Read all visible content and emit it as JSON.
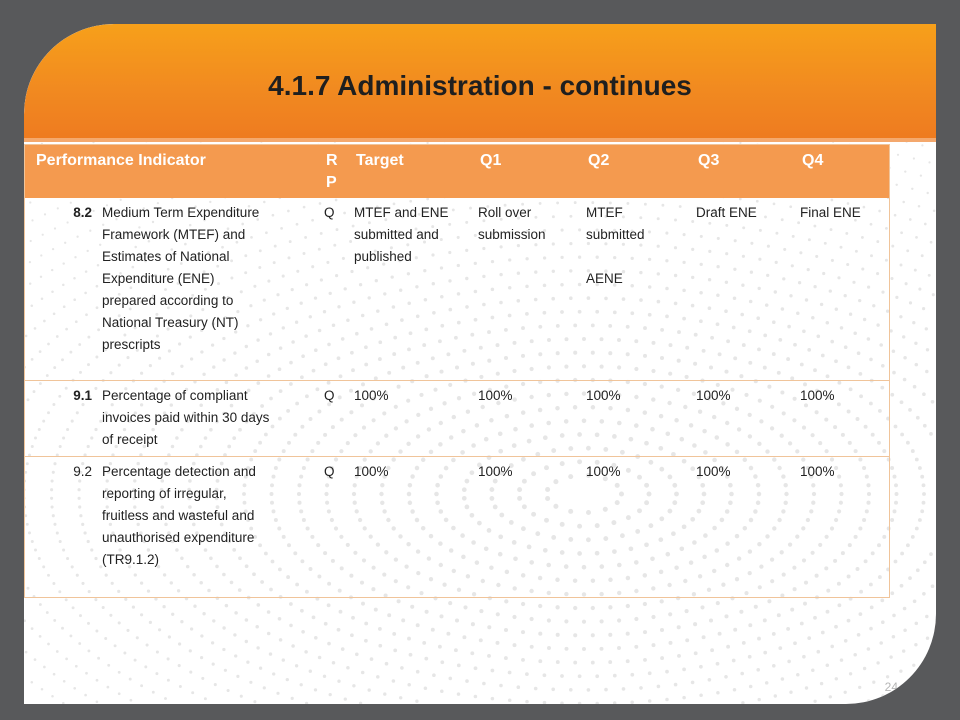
{
  "slide": {
    "title": "4.1.7 Administration - continues",
    "page_number": "24"
  },
  "table": {
    "headers": [
      "Performance Indicator",
      "R P",
      "Target",
      "Q1",
      "Q2",
      "Q3",
      "Q4"
    ],
    "header_rp_lines": [
      "R",
      "P"
    ],
    "rows": [
      {
        "num": "8.2",
        "indicator_lines": [
          "Medium Term Expenditure",
          "Framework (MTEF) and",
          "Estimates of National",
          "Expenditure (ENE)",
          "prepared according to",
          "National Treasury (NT)",
          "prescripts"
        ],
        "rp": "Q",
        "target_lines": [
          "MTEF and ENE",
          "submitted and",
          "published"
        ],
        "q1_lines": [
          "Roll over",
          "submission"
        ],
        "q2_lines": [
          "MTEF",
          "submitted",
          "",
          "AENE"
        ],
        "q3": "Draft ENE",
        "q4": "Final ENE"
      },
      {
        "num": "9.1",
        "indicator_lines": [
          "Percentage of compliant",
          "invoices paid within 30 days",
          "of receipt"
        ],
        "rp": "Q",
        "target": "100%",
        "q1": "100%",
        "q2": "100%",
        "q3": "100%",
        "q4": "100%"
      },
      {
        "num": "9.2",
        "indicator_lines": [
          "Percentage detection and",
          "reporting of irregular,",
          "fruitless and wasteful and",
          "unauthorised expenditure",
          "(TR9.1.2)"
        ],
        "rp": "Q",
        "target": "100%",
        "q1": "100%",
        "q2": "100%",
        "q3": "100%",
        "q4": "100%"
      }
    ]
  },
  "colors": {
    "banner": "#f18a20",
    "header_fill": "#f49a4f",
    "frame": "#58595b",
    "dots": "#e6e6e6"
  }
}
